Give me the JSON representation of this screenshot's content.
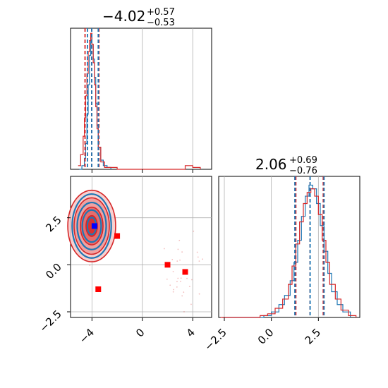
{
  "chart_data": [
    {
      "id": "p1_hist",
      "type": "histogram",
      "title": {
        "value": "−4.02",
        "plus": "+0.57",
        "minus": "−0.53"
      },
      "xlim": [
        -5.7,
        5.5
      ],
      "grid": true,
      "colors": {
        "blue": "#1f77b4",
        "red": "#d62728"
      },
      "quantile_lines": {
        "red": [
          -4.55,
          -4.02,
          -3.45
        ],
        "blue": [
          -4.35,
          -4.02,
          -3.5
        ]
      },
      "series": [
        {
          "name": "blue",
          "bins": [
            [
              -5.0,
              0.0
            ],
            [
              -4.8,
              0.02
            ],
            [
              -4.6,
              0.06
            ],
            [
              -4.5,
              0.14
            ],
            [
              -4.4,
              0.3
            ],
            [
              -4.3,
              0.46
            ],
            [
              -4.2,
              0.62
            ],
            [
              -4.1,
              0.72
            ],
            [
              -4.0,
              0.68
            ],
            [
              -3.9,
              0.6
            ],
            [
              -3.8,
              0.5
            ],
            [
              -3.7,
              0.36
            ],
            [
              -3.6,
              0.24
            ],
            [
              -3.5,
              0.12
            ],
            [
              -3.3,
              0.05
            ],
            [
              -3.1,
              0.02
            ],
            [
              -2.8,
              0.01
            ],
            [
              -2.5,
              0.0
            ]
          ]
        },
        {
          "name": "red",
          "bins": [
            [
              -5.1,
              0.02
            ],
            [
              -4.9,
              0.08
            ],
            [
              -4.7,
              0.18
            ],
            [
              -4.6,
              0.28
            ],
            [
              -4.5,
              0.4
            ],
            [
              -4.4,
              0.52
            ],
            [
              -4.3,
              0.64
            ],
            [
              -4.2,
              0.7
            ],
            [
              -4.1,
              0.74
            ],
            [
              -4.0,
              0.68
            ],
            [
              -3.9,
              0.58
            ],
            [
              -3.8,
              0.46
            ],
            [
              -3.7,
              0.34
            ],
            [
              -3.6,
              0.22
            ],
            [
              -3.5,
              0.12
            ],
            [
              -3.3,
              0.04
            ],
            [
              -3.0,
              0.01
            ],
            [
              -2.0,
              0.0
            ],
            [
              1.0,
              0.0
            ],
            [
              3.4,
              0.02
            ],
            [
              4.0,
              0.01
            ],
            [
              4.6,
              0.0
            ]
          ]
        }
      ]
    },
    {
      "id": "p2_hist",
      "type": "histogram",
      "title": {
        "value": "2.06",
        "plus": "+0.69",
        "minus": "−0.76"
      },
      "xlim": [
        -2.8,
        4.7
      ],
      "x_ticks": [
        "−2.5",
        "0.0",
        "2.5"
      ],
      "x_tick_values": [
        -2.5,
        0.0,
        2.5
      ],
      "grid": true,
      "quantile_lines": {
        "red": [
          1.3,
          2.06,
          2.76
        ],
        "blue": [
          1.25,
          2.06,
          2.8
        ]
      },
      "series": [
        {
          "name": "blue",
          "bins": [
            [
              -2.6,
              0.0
            ],
            [
              -0.4,
              0.01
            ],
            [
              0.0,
              0.03
            ],
            [
              0.4,
              0.07
            ],
            [
              0.7,
              0.12
            ],
            [
              1.0,
              0.2
            ],
            [
              1.2,
              0.3
            ],
            [
              1.4,
              0.42
            ],
            [
              1.6,
              0.55
            ],
            [
              1.8,
              0.66
            ],
            [
              2.0,
              0.72
            ],
            [
              2.2,
              0.7
            ],
            [
              2.4,
              0.62
            ],
            [
              2.6,
              0.5
            ],
            [
              2.8,
              0.36
            ],
            [
              3.0,
              0.24
            ],
            [
              3.2,
              0.14
            ],
            [
              3.5,
              0.07
            ],
            [
              3.8,
              0.03
            ],
            [
              4.2,
              0.0
            ]
          ]
        },
        {
          "name": "red",
          "bins": [
            [
              -2.7,
              0.0
            ],
            [
              -0.6,
              0.01
            ],
            [
              -0.2,
              0.02
            ],
            [
              0.2,
              0.05
            ],
            [
              0.6,
              0.1
            ],
            [
              0.9,
              0.18
            ],
            [
              1.1,
              0.28
            ],
            [
              1.3,
              0.4
            ],
            [
              1.5,
              0.52
            ],
            [
              1.7,
              0.62
            ],
            [
              1.9,
              0.68
            ],
            [
              2.1,
              0.7
            ],
            [
              2.3,
              0.66
            ],
            [
              2.5,
              0.56
            ],
            [
              2.7,
              0.42
            ],
            [
              2.9,
              0.3
            ],
            [
              3.1,
              0.18
            ],
            [
              3.4,
              0.1
            ],
            [
              3.7,
              0.04
            ],
            [
              4.1,
              0.01
            ],
            [
              4.5,
              0.0
            ]
          ]
        }
      ]
    },
    {
      "id": "joint",
      "type": "scatter",
      "xlim": [
        -5.7,
        5.5
      ],
      "ylim": [
        -2.8,
        4.7
      ],
      "x_ticks": [
        "−4",
        "0",
        "4"
      ],
      "x_tick_values": [
        -4,
        0,
        4
      ],
      "y_ticks": [
        "−2.5",
        "0.0",
        "2.5"
      ],
      "y_tick_values": [
        -2.5,
        0.0,
        2.5
      ],
      "grid": true,
      "center": [
        -4.02,
        2.06
      ],
      "contours": {
        "blue": [
          [
            1.55,
            1.7
          ],
          [
            1.15,
            1.25
          ],
          [
            0.75,
            0.85
          ],
          [
            0.35,
            0.45
          ]
        ],
        "red": [
          [
            1.9,
            1.9
          ],
          [
            1.4,
            1.5
          ],
          [
            0.9,
            1.0
          ],
          [
            0.45,
            0.55
          ]
        ]
      },
      "markers": {
        "blue_squares": [
          [
            -3.8,
            2.06
          ]
        ],
        "red_squares": [
          [
            -2.0,
            1.53
          ],
          [
            2.0,
            0.0
          ],
          [
            3.4,
            -0.38
          ],
          [
            -3.5,
            -1.3
          ]
        ]
      },
      "outlier_cluster": [
        3.5,
        -0.3
      ]
    }
  ]
}
